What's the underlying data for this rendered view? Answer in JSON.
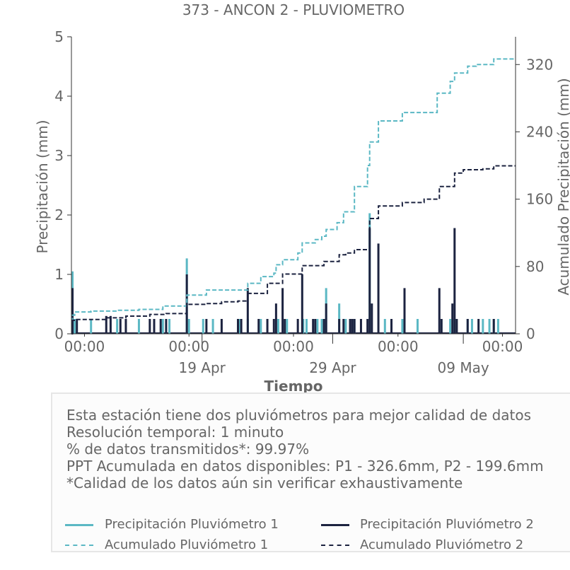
{
  "chart_data": {
    "type": "bar",
    "title": "373 - ANCON 2 - PLUVIOMETRO",
    "xlabel": "Tiempo",
    "ylabel": "Precipitación (mm)",
    "y2label": "Acumulado Precipitación (mm)",
    "ylim": [
      0,
      5
    ],
    "y2lim": [
      0,
      353
    ],
    "yticks": [
      0,
      1,
      2,
      3,
      4,
      5
    ],
    "y2ticks": [
      0,
      80,
      160,
      240,
      320
    ],
    "xlim": [
      "2025-04-09T00:00",
      "2025-05-13T00:00"
    ],
    "x_minor_tick_labels": [
      "00:00",
      "00:00",
      "00:00",
      "00:00",
      "00:00"
    ],
    "x_minor_ticks": [
      "2025-04-10T00:00",
      "2025-04-18T00:00",
      "2025-04-26T00:00",
      "2025-05-04T00:00",
      "2025-05-12T00:00"
    ],
    "x_major_tick_labels": [
      "19 Apr",
      "29 Apr",
      "09 May"
    ],
    "x_major_ticks": [
      "2025-04-19T00:00",
      "2025-04-29T00:00",
      "2025-05-09T00:00"
    ],
    "grid": false,
    "legend_position": "below",
    "series": [
      {
        "name": "Precipitación Pluviómetro 1",
        "kind": "bar",
        "axis": "left",
        "color": "#5bb8c4",
        "points": [
          [
            "2025-04-09T02:00",
            1.05
          ],
          [
            "2025-04-09T06:00",
            0.25
          ],
          [
            "2025-04-10T12:00",
            0.25
          ],
          [
            "2025-04-12T12:00",
            0.25
          ],
          [
            "2025-04-14T04:00",
            0.25
          ],
          [
            "2025-04-16T00:00",
            0.25
          ],
          [
            "2025-04-16T12:00",
            0.25
          ],
          [
            "2025-04-17T20:00",
            1.27
          ],
          [
            "2025-04-18T00:00",
            0.25
          ],
          [
            "2025-04-19T02:00",
            0.25
          ],
          [
            "2025-04-19T20:00",
            0.25
          ],
          [
            "2025-04-21T20:00",
            0.25
          ],
          [
            "2025-04-22T12:00",
            0.25
          ],
          [
            "2025-04-23T12:00",
            0.25
          ],
          [
            "2025-04-24T20:00",
            0.25
          ],
          [
            "2025-04-25T12:00",
            0.25
          ],
          [
            "2025-04-26T18:00",
            0.25
          ],
          [
            "2025-04-27T00:00",
            0.25
          ],
          [
            "2025-04-27T20:00",
            0.25
          ],
          [
            "2025-04-28T04:00",
            0.25
          ],
          [
            "2025-04-28T12:00",
            0.77
          ],
          [
            "2025-04-29T12:00",
            0.51
          ],
          [
            "2025-04-30T00:00",
            0.25
          ],
          [
            "2025-04-30T08:00",
            0.25
          ],
          [
            "2025-04-30T16:00",
            0.25
          ],
          [
            "2025-05-01T20:00",
            2.03
          ],
          [
            "2025-05-03T00:00",
            0.25
          ],
          [
            "2025-05-04T08:00",
            0.25
          ],
          [
            "2025-05-05T12:00",
            0.25
          ],
          [
            "2025-05-08T00:00",
            0.25
          ],
          [
            "2025-05-08T08:00",
            0.25
          ],
          [
            "2025-05-09T08:00",
            0.25
          ],
          [
            "2025-05-09T16:00",
            0.25
          ],
          [
            "2025-05-10T12:00",
            0.25
          ],
          [
            "2025-05-11T00:00",
            0.25
          ],
          [
            "2025-05-11T08:00",
            0.25
          ],
          [
            "2025-05-11T16:00",
            0.25
          ]
        ]
      },
      {
        "name": "Precipitación Pluviómetro 2",
        "kind": "bar",
        "axis": "left",
        "color": "#1c2340",
        "points": [
          [
            "2025-04-09T02:00",
            0.77
          ],
          [
            "2025-04-09T10:00",
            0.25
          ],
          [
            "2025-04-11T16:00",
            0.3
          ],
          [
            "2025-04-12T00:00",
            0.3
          ],
          [
            "2025-04-12T18:00",
            0.25
          ],
          [
            "2025-04-13T04:00",
            0.25
          ],
          [
            "2025-04-15T00:00",
            0.25
          ],
          [
            "2025-04-15T08:00",
            0.25
          ],
          [
            "2025-04-15T20:00",
            0.25
          ],
          [
            "2025-04-16T06:00",
            0.25
          ],
          [
            "2025-04-17T20:00",
            1.0
          ],
          [
            "2025-04-19T08:00",
            0.25
          ],
          [
            "2025-04-20T12:00",
            0.25
          ],
          [
            "2025-04-21T18:00",
            0.25
          ],
          [
            "2025-04-22T00:00",
            0.25
          ],
          [
            "2025-04-22T12:00",
            0.77
          ],
          [
            "2025-04-23T08:00",
            0.25
          ],
          [
            "2025-04-24T00:00",
            0.25
          ],
          [
            "2025-04-24T12:00",
            0.25
          ],
          [
            "2025-04-24T16:00",
            0.51
          ],
          [
            "2025-04-25T04:00",
            0.77
          ],
          [
            "2025-04-25T08:00",
            0.25
          ],
          [
            "2025-04-26T08:00",
            0.25
          ],
          [
            "2025-04-26T16:00",
            1.0
          ],
          [
            "2025-04-27T12:00",
            0.25
          ],
          [
            "2025-04-27T16:00",
            0.25
          ],
          [
            "2025-04-28T08:00",
            0.25
          ],
          [
            "2025-04-28T12:00",
            0.51
          ],
          [
            "2025-04-29T12:00",
            0.25
          ],
          [
            "2025-04-29T20:00",
            0.25
          ],
          [
            "2025-04-30T08:00",
            0.25
          ],
          [
            "2025-04-30T12:00",
            0.25
          ],
          [
            "2025-04-30T16:00",
            0.25
          ],
          [
            "2025-05-01T04:00",
            0.25
          ],
          [
            "2025-05-01T16:00",
            0.25
          ],
          [
            "2025-05-01T20:00",
            1.78
          ],
          [
            "2025-05-02T00:00",
            0.51
          ],
          [
            "2025-05-02T12:00",
            1.52
          ],
          [
            "2025-05-03T12:00",
            0.25
          ],
          [
            "2025-05-04T12:00",
            0.77
          ],
          [
            "2025-05-07T04:00",
            0.77
          ],
          [
            "2025-05-07T08:00",
            0.25
          ],
          [
            "2025-05-08T04:00",
            0.51
          ],
          [
            "2025-05-08T08:00",
            1.78
          ],
          [
            "2025-05-08T12:00",
            0.25
          ],
          [
            "2025-05-09T08:00",
            0.25
          ],
          [
            "2025-05-10T04:00",
            0.25
          ],
          [
            "2025-05-11T08:00",
            0.25
          ]
        ]
      },
      {
        "name": "Acumulado Pluviómetro 1",
        "kind": "step",
        "axis": "right",
        "color": "#5bb8c4",
        "points": [
          [
            "2025-04-09T00:00",
            0
          ],
          [
            "2025-04-09T02:00",
            22
          ],
          [
            "2025-04-09T06:00",
            26
          ],
          [
            "2025-04-10T12:00",
            27
          ],
          [
            "2025-04-12T12:00",
            28
          ],
          [
            "2025-04-14T04:00",
            29
          ],
          [
            "2025-04-16T00:00",
            33
          ],
          [
            "2025-04-17T20:00",
            46
          ],
          [
            "2025-04-19T08:00",
            52
          ],
          [
            "2025-04-22T12:00",
            60
          ],
          [
            "2025-04-23T12:00",
            68
          ],
          [
            "2025-04-24T12:00",
            72
          ],
          [
            "2025-04-24T16:00",
            82
          ],
          [
            "2025-04-25T04:00",
            88
          ],
          [
            "2025-04-26T08:00",
            96
          ],
          [
            "2025-04-26T16:00",
            108
          ],
          [
            "2025-04-27T16:00",
            112
          ],
          [
            "2025-04-28T04:00",
            116
          ],
          [
            "2025-04-28T12:00",
            124
          ],
          [
            "2025-04-29T08:00",
            132
          ],
          [
            "2025-04-29T20:00",
            145
          ],
          [
            "2025-04-30T16:00",
            175
          ],
          [
            "2025-05-01T16:00",
            200
          ],
          [
            "2025-05-01T20:00",
            228
          ],
          [
            "2025-05-02T12:00",
            253
          ],
          [
            "2025-05-04T08:00",
            263
          ],
          [
            "2025-05-07T00:00",
            286
          ],
          [
            "2025-05-08T00:00",
            300
          ],
          [
            "2025-05-08T08:00",
            310
          ],
          [
            "2025-05-09T08:00",
            318
          ],
          [
            "2025-05-10T00:00",
            320
          ],
          [
            "2025-05-11T08:00",
            326.6
          ],
          [
            "2025-05-13T00:00",
            326.6
          ]
        ]
      },
      {
        "name": "Acumulado Pluviómetro 2",
        "kind": "step",
        "axis": "right",
        "color": "#1c2340",
        "points": [
          [
            "2025-04-09T00:00",
            0
          ],
          [
            "2025-04-09T02:00",
            16
          ],
          [
            "2025-04-09T10:00",
            17
          ],
          [
            "2025-04-11T16:00",
            19
          ],
          [
            "2025-04-13T04:00",
            21
          ],
          [
            "2025-04-15T00:00",
            23
          ],
          [
            "2025-04-16T06:00",
            24
          ],
          [
            "2025-04-17T20:00",
            35
          ],
          [
            "2025-04-19T08:00",
            36
          ],
          [
            "2025-04-20T12:00",
            38
          ],
          [
            "2025-04-21T18:00",
            39
          ],
          [
            "2025-04-22T12:00",
            48
          ],
          [
            "2025-04-24T00:00",
            60
          ],
          [
            "2025-04-25T04:00",
            71
          ],
          [
            "2025-04-26T16:00",
            81
          ],
          [
            "2025-04-28T08:00",
            86
          ],
          [
            "2025-04-29T12:00",
            94
          ],
          [
            "2025-04-30T00:00",
            96
          ],
          [
            "2025-04-30T16:00",
            100
          ],
          [
            "2025-05-01T20:00",
            137
          ],
          [
            "2025-05-02T12:00",
            152
          ],
          [
            "2025-05-04T08:00",
            156
          ],
          [
            "2025-05-06T00:00",
            160
          ],
          [
            "2025-05-07T04:00",
            175
          ],
          [
            "2025-05-08T08:00",
            191
          ],
          [
            "2025-05-09T00:00",
            195
          ],
          [
            "2025-05-10T12:00",
            196
          ],
          [
            "2025-05-11T08:00",
            199.6
          ],
          [
            "2025-05-13T00:00",
            199.6
          ]
        ]
      }
    ]
  },
  "info": {
    "lines": [
      "Esta estación tiene dos pluviómetros para mejor calidad de datos",
      "Resolución temporal: 1 minuto",
      "% de datos transmitidos*: 99.97%",
      "PPT Acumulada en datos disponibles: P1 - 326.6mm, P2 - 199.6mm",
      "*Calidad de los datos aún sin verificar exhaustivamente"
    ]
  },
  "legend": {
    "p1_precip": "Precipitación Pluviómetro 1",
    "p2_precip": "Precipitación Pluviómetro 2",
    "p1_acum": "Acumulado Pluviómetro 1",
    "p2_acum": "Acumulado Pluviómetro 2"
  },
  "colors": {
    "p1": "#5bb8c4",
    "p2": "#1c2340",
    "axis": "#333333",
    "text": "#666666"
  }
}
